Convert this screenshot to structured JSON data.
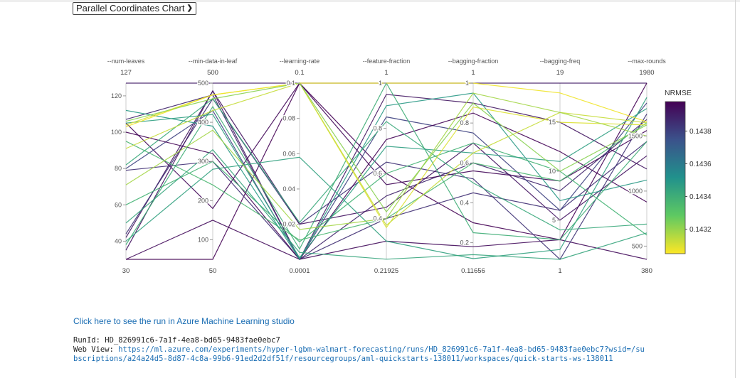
{
  "selector": {
    "label": "Parallel Coordinates Chart",
    "icon": "chevron-down-icon"
  },
  "chart_data": {
    "type": "parallel-coordinates",
    "axes": [
      {
        "name": "--num-leaves",
        "max_label": "127",
        "min_label": "30",
        "range": [
          30,
          127
        ],
        "ticks": [
          40,
          60,
          80,
          100,
          120
        ]
      },
      {
        "name": "--min-data-in-leaf",
        "max_label": "500",
        "min_label": "50",
        "range": [
          50,
          500
        ],
        "ticks": [
          100,
          200,
          300,
          400,
          500
        ]
      },
      {
        "name": "--learning-rate",
        "max_label": "0.1",
        "min_label": "0.0001",
        "range": [
          0.0001,
          0.1
        ],
        "ticks": [
          0.02,
          0.04,
          0.06,
          0.08,
          0.1
        ]
      },
      {
        "name": "--feature-fraction",
        "max_label": "1",
        "min_label": "0.21925",
        "range": [
          0.21925,
          1
        ],
        "ticks": [
          0.4,
          0.6,
          0.8,
          1
        ]
      },
      {
        "name": "--bagging-fraction",
        "max_label": "1",
        "min_label": "0.11656",
        "range": [
          0.11656,
          1
        ],
        "ticks": [
          0.2,
          0.4,
          0.6,
          0.8,
          1
        ]
      },
      {
        "name": "--bagging-freq",
        "max_label": "19",
        "min_label": "1",
        "range": [
          1,
          19
        ],
        "ticks": [
          5,
          10,
          15
        ]
      },
      {
        "name": "--max-rounds",
        "max_label": "1980",
        "min_label": "380",
        "range": [
          380,
          1980
        ],
        "ticks": [
          500,
          1000,
          1500
        ]
      }
    ],
    "colorbar": {
      "title": "NRMSE",
      "range": [
        0.14305,
        0.14398
      ],
      "ticks": [
        0.1432,
        0.1434,
        0.1436,
        0.1438
      ],
      "colorscale": [
        "#fde725",
        "#5ec962",
        "#21918c",
        "#3b528b",
        "#440154"
      ]
    },
    "lines": [
      {
        "nrmse": 0.1439,
        "values": [
          127,
          500,
          0.1,
          1,
          1,
          19,
          1980
        ]
      },
      {
        "nrmse": 0.14398,
        "values": [
          30,
          50,
          0.1,
          0.6,
          0.3,
          3,
          1980
        ]
      },
      {
        "nrmse": 0.14392,
        "values": [
          42,
          480,
          0.0001,
          0.95,
          0.9,
          15,
          1200
        ]
      },
      {
        "nrmse": 0.14388,
        "values": [
          107,
          470,
          0.0001,
          0.5,
          0.6,
          8,
          1650
        ]
      },
      {
        "nrmse": 0.14385,
        "values": [
          79,
          300,
          0.0001,
          0.4,
          0.45,
          6,
          1450
        ]
      },
      {
        "nrmse": 0.14395,
        "values": [
          30,
          150,
          0.0001,
          0.3,
          0.18,
          3,
          380
        ]
      },
      {
        "nrmse": 0.14396,
        "values": [
          105,
          180,
          0.1,
          0.55,
          0.56,
          9,
          1550
        ]
      },
      {
        "nrmse": 0.14384,
        "values": [
          44,
          460,
          0.02,
          0.65,
          0.52,
          1,
          1700
        ]
      },
      {
        "nrmse": 0.14393,
        "values": [
          35,
          480,
          0.02,
          0.45,
          0.7,
          5,
          1320
        ]
      },
      {
        "nrmse": 0.1438,
        "values": [
          80,
          430,
          0.0001,
          0.85,
          0.75,
          6,
          1800
        ]
      },
      {
        "nrmse": 0.14397,
        "values": [
          100,
          320,
          0.0001,
          0.75,
          0.85,
          12,
          900
        ]
      },
      {
        "nrmse": 0.14348,
        "values": [
          112,
          390,
          0.0001,
          0.9,
          0.95,
          7,
          1100
        ]
      },
      {
        "nrmse": 0.14345,
        "values": [
          40,
          280,
          0.058,
          0.3,
          0.12,
          2,
          1850
        ]
      },
      {
        "nrmse": 0.14342,
        "values": [
          82,
          460,
          0.021,
          0.83,
          0.5,
          4,
          700
        ]
      },
      {
        "nrmse": 0.1434,
        "values": [
          38,
          440,
          0.006,
          1,
          0.25,
          3,
          1450
        ]
      },
      {
        "nrmse": 0.14338,
        "values": [
          60,
          300,
          0.01,
          0.6,
          0.7,
          10,
          600
        ]
      },
      {
        "nrmse": 0.14346,
        "values": [
          105,
          420,
          0.001,
          0.72,
          0.65,
          11,
          1750
        ]
      },
      {
        "nrmse": 0.14336,
        "values": [
          95,
          240,
          0.011,
          0.4,
          0.6,
          9,
          1620
        ]
      },
      {
        "nrmse": 0.14343,
        "values": [
          50,
          330,
          0.004,
          0.22,
          0.14,
          1,
          620
        ]
      },
      {
        "nrmse": 0.1431,
        "values": [
          104,
          470,
          0.1,
          0.36,
          0.88,
          15,
          1600
        ]
      },
      {
        "nrmse": 0.14313,
        "values": [
          91,
          430,
          0.1,
          0.37,
          0.65,
          16,
          1620
        ]
      },
      {
        "nrmse": 0.14318,
        "values": [
          71,
          380,
          0.017,
          0.4,
          0.95,
          16,
          1500
        ]
      },
      {
        "nrmse": 0.14307,
        "values": [
          103,
          470,
          0.1,
          1,
          1,
          18,
          1630
        ]
      },
      {
        "nrmse": 0.14322,
        "values": [
          106,
          460,
          0.1,
          0.43,
          0.9,
          10,
          1600
        ]
      }
    ]
  },
  "footer": {
    "link_text": "Click here to see the run in Azure Machine Learning studio",
    "run_id_line": "RunId: HD_826991c6-7a1f-4ea8-bd65-9483fae0ebc7",
    "web_view_label": "Web View: ",
    "web_view_url_line1": "https://ml.azure.com/experiments/hyper-lgbm-walmart-forecasting/runs/HD_826991c6-7a1f-4ea8-bd65-9483fae0ebc7?wsid=/su",
    "web_view_url_line2": "bscriptions/a24a24d5-8d87-4c8a-99b6-91ed2d2df51f/resourcegroups/aml-quickstarts-138011/workspaces/quick-starts-ws-138011"
  }
}
